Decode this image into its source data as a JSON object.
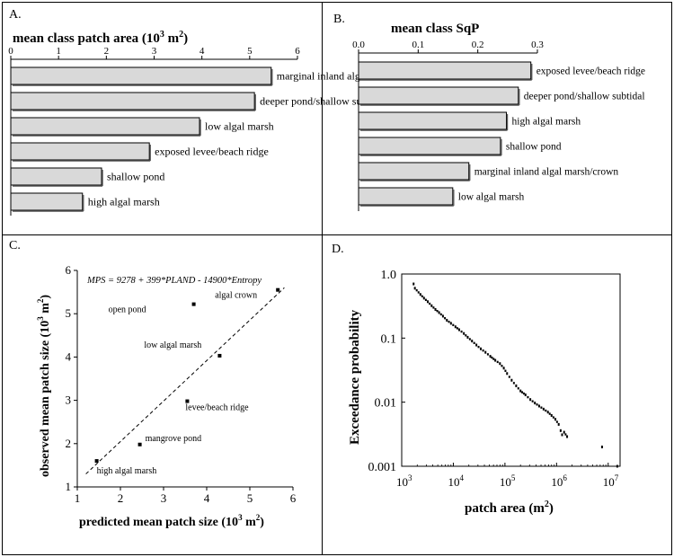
{
  "panels": {
    "a": {
      "letter": "A."
    },
    "b": {
      "letter": "B."
    },
    "c": {
      "letter": "C."
    },
    "d": {
      "letter": "D."
    }
  },
  "chart_data": [
    {
      "id": "A",
      "type": "bar",
      "orientation": "horizontal",
      "title": "mean class patch area (10",
      "title_sup": "3",
      "title_mid": " m",
      "title_sup2": "2",
      "title_end": ")",
      "xlim": [
        0,
        6
      ],
      "xticks": [
        0,
        1,
        2,
        3,
        4,
        5,
        6
      ],
      "tick_labels": [
        "0",
        "1",
        "2",
        "3",
        "4",
        "5",
        "6"
      ],
      "axis_position": "top",
      "bar_color": "#d9d9d9",
      "categories": [
        "marginal inland algal marsh",
        "deeper pond/shallow subtidal",
        "low algal marsh",
        "exposed levee/beach ridge",
        "shallow pond",
        "high algal marsh"
      ],
      "values": [
        5.45,
        5.1,
        3.95,
        2.9,
        1.9,
        1.5
      ]
    },
    {
      "id": "B",
      "type": "bar",
      "orientation": "horizontal",
      "title": "mean class SqP",
      "xlim": [
        0,
        0.3
      ],
      "xticks": [
        0,
        0.1,
        0.2,
        0.3
      ],
      "tick_labels": [
        "0.0",
        "0.1",
        "0.2",
        "0.3"
      ],
      "axis_position": "top",
      "bar_color": "#d9d9d9",
      "categories": [
        "exposed levee/beach ridge",
        "deeper pond/shallow subtidal",
        "high algal marsh",
        "shallow pond",
        "marginal inland algal marsh/crown",
        "low algal marsh"
      ],
      "values": [
        0.289,
        0.268,
        0.248,
        0.238,
        0.185,
        0.158
      ]
    },
    {
      "id": "C",
      "type": "scatter",
      "equation": "MPS = 9278 + 399*PLAND - 14900*Entropy",
      "xlabel": "predicted mean patch size (10",
      "xlabel_sup": "3",
      "xlabel_mid": " m",
      "xlabel_sup2": "2",
      "xlabel_end": ")",
      "ylabel": "observed mean patch size (10",
      "ylabel_sup": "3",
      "ylabel_mid": " m",
      "ylabel_sup2": "2",
      "ylabel_end": ")",
      "xlim": [
        1,
        6
      ],
      "ylim": [
        1,
        6
      ],
      "xticks": [
        "1",
        "2",
        "3",
        "4",
        "5",
        "6"
      ],
      "yticks": [
        "1",
        "2",
        "3",
        "4",
        "5",
        "6"
      ],
      "fit_line": {
        "x": [
          1.2,
          5.8
        ],
        "y": [
          1.3,
          5.6
        ],
        "style": "dashed"
      },
      "points": [
        {
          "label": "algal crown",
          "x": 5.65,
          "y": 5.55
        },
        {
          "label": "open pond",
          "x": 3.7,
          "y": 5.22
        },
        {
          "label": "low algal marsh",
          "x": 4.3,
          "y": 4.03
        },
        {
          "label": "levee/beach ridge",
          "x": 3.55,
          "y": 2.98
        },
        {
          "label": "mangrove pond",
          "x": 2.45,
          "y": 1.98
        },
        {
          "label": "high algal marsh",
          "x": 1.45,
          "y": 1.6
        }
      ]
    },
    {
      "id": "D",
      "type": "scatter",
      "xscale": "log",
      "yscale": "log",
      "xlabel": "patch area (m",
      "xlabel_sup": "2",
      "xlabel_end": ")",
      "ylabel": "Exceedance probability",
      "xlim": [
        1000,
        17000000
      ],
      "ylim": [
        0.001,
        1
      ],
      "xticks": [
        {
          "base": "10",
          "exp": "3"
        },
        {
          "base": "10",
          "exp": "4"
        },
        {
          "base": "10",
          "exp": "5"
        },
        {
          "base": "10",
          "exp": "6"
        },
        {
          "base": "10",
          "exp": "7"
        }
      ],
      "yticks": [
        "1.0",
        "0.1",
        "0.01",
        "0.001"
      ],
      "x": [
        1700,
        1800,
        2300,
        2700,
        3200,
        3800,
        4500,
        5300,
        6300,
        7500,
        9000,
        11000,
        13000,
        16000,
        19000,
        23000,
        28000,
        34000,
        42000,
        52000,
        65000,
        80000,
        95000,
        110000,
        135000,
        165000,
        200000,
        250000,
        310000,
        380000,
        460000,
        560000,
        680000,
        800000,
        950000,
        1100000,
        1200000,
        1280000,
        1400000,
        1600000,
        7600000,
        15000000
      ],
      "y": [
        0.7,
        0.6,
        0.48,
        0.42,
        0.37,
        0.32,
        0.28,
        0.25,
        0.22,
        0.19,
        0.17,
        0.15,
        0.135,
        0.118,
        0.103,
        0.09,
        0.078,
        0.068,
        0.06,
        0.052,
        0.045,
        0.04,
        0.034,
        0.028,
        0.022,
        0.018,
        0.015,
        0.013,
        0.011,
        0.0097,
        0.0087,
        0.0078,
        0.007,
        0.0062,
        0.0054,
        0.0045,
        0.0036,
        0.0031,
        0.0034,
        0.0029,
        0.002,
        0.001
      ]
    }
  ]
}
